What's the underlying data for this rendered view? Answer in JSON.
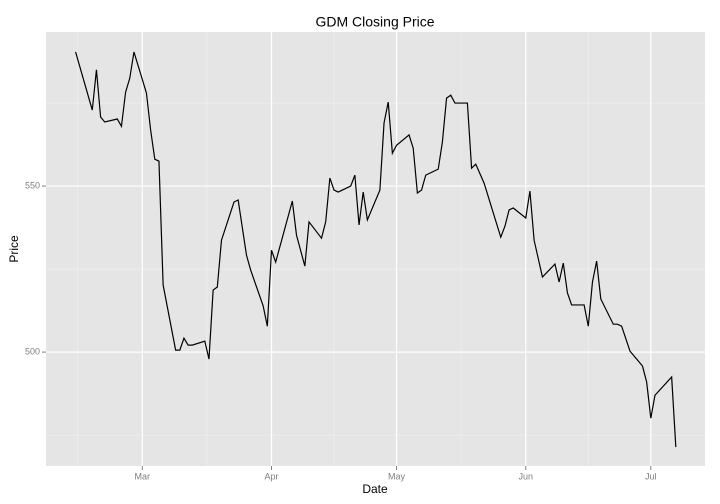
{
  "chart_data": {
    "type": "line",
    "title": "GDM Closing Price",
    "x_label": "Date",
    "y_label": "Price",
    "x": [
      44,
      48,
      49,
      50,
      51,
      54,
      55,
      56,
      57,
      58,
      61,
      62,
      63,
      64,
      65,
      68,
      69,
      70,
      71,
      72,
      75,
      76,
      77,
      78,
      79,
      82,
      83,
      85,
      86,
      89,
      90,
      91,
      92,
      96,
      97,
      99,
      100,
      103,
      104,
      105,
      106,
      107,
      110,
      111,
      112,
      113,
      114,
      117,
      118,
      119,
      120,
      121,
      124,
      125,
      126,
      127,
      128,
      131,
      132,
      133,
      134,
      135,
      138,
      139,
      140,
      142,
      146,
      147,
      148,
      149,
      152,
      153,
      154,
      156,
      159,
      160,
      161,
      162,
      163,
      166,
      167,
      168,
      169,
      170,
      173,
      174,
      175,
      177,
      180,
      181,
      182,
      183,
      187,
      188
    ],
    "series": [
      {
        "name": "Price",
        "color": "#000000",
        "values": [
          590.4,
          572.9,
          585.0,
          570.8,
          569.3,
          570.2,
          568.0,
          578.3,
          582.5,
          590.4,
          578.0,
          566.9,
          558.1,
          557.5,
          520.2,
          500.6,
          500.6,
          504.2,
          502.1,
          502.1,
          503.3,
          497.9,
          518.7,
          519.6,
          533.7,
          545.2,
          545.8,
          529.2,
          524.7,
          513.9,
          507.8,
          530.7,
          527.1,
          545.5,
          535.2,
          525.9,
          539.2,
          534.3,
          539.2,
          552.4,
          548.8,
          548.2,
          550.0,
          553.3,
          538.3,
          548.2,
          539.8,
          548.8,
          569.0,
          575.3,
          559.9,
          562.3,
          565.4,
          561.4,
          547.9,
          548.8,
          553.3,
          555.1,
          563.3,
          576.5,
          577.4,
          575.0,
          575.0,
          555.4,
          556.6,
          550.9,
          534.6,
          537.9,
          542.8,
          543.4,
          540.4,
          548.5,
          533.7,
          522.6,
          526.5,
          521.1,
          526.8,
          517.8,
          514.2,
          514.2,
          507.8,
          521.1,
          527.4,
          516.0,
          508.4,
          508.4,
          507.8,
          500.3,
          495.8,
          491.0,
          480.1,
          487.0,
          492.5,
          471.4
        ]
      }
    ],
    "xlim": [
      36.9,
      195
    ],
    "xticks": [
      {
        "value": 60,
        "label": "Mar"
      },
      {
        "value": 91,
        "label": "Apr"
      },
      {
        "value": 121,
        "label": "May"
      },
      {
        "value": 152,
        "label": "Jun"
      },
      {
        "value": 182,
        "label": "Jul"
      }
    ],
    "ylim": [
      465.7,
      596.4
    ],
    "yticks": [
      500,
      550
    ],
    "grid": true
  }
}
